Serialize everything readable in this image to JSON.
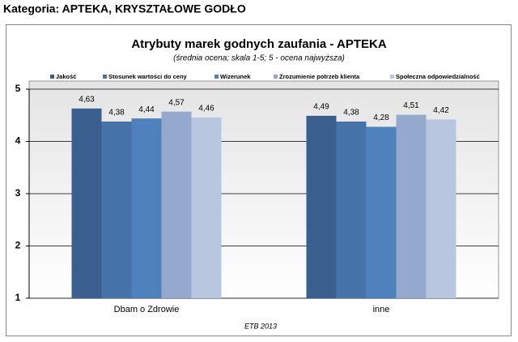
{
  "page_title": "Kategoria: APTEKA, KRYSZTAŁOWE GODŁO",
  "chart_data": {
    "type": "bar",
    "title": "Atrybuty marek godnych zaufania - APTEKA",
    "subtitle": "(średnia ocena; skala 1-5; 5 - ocena najwyższa)",
    "source": "ETB 2013",
    "categories": [
      "Dbam o Zdrowie",
      "inne"
    ],
    "series": [
      {
        "name": "Jakość",
        "color": "#3a5f8f",
        "values": [
          4.63,
          4.49
        ],
        "value_labels": [
          "4,63",
          "4,49"
        ]
      },
      {
        "name": "Stosunek wartości do ceny",
        "color": "#4673aa",
        "values": [
          4.38,
          4.38
        ],
        "value_labels": [
          "4,38",
          "4,38"
        ]
      },
      {
        "name": "Wizerunek",
        "color": "#4f81bd",
        "values": [
          4.44,
          4.28
        ],
        "value_labels": [
          "4,44",
          "4,28"
        ]
      },
      {
        "name": "Zrozumienie potrzeb klienta",
        "color": "#95a9cf",
        "values": [
          4.57,
          4.51
        ],
        "value_labels": [
          "4,57",
          "4,51"
        ]
      },
      {
        "name": "Społeczna odpowiedzialność",
        "color": "#b9c6e0",
        "values": [
          4.46,
          4.42
        ],
        "value_labels": [
          "4,46",
          "4,42"
        ]
      }
    ],
    "ylim": [
      1,
      5
    ],
    "yticks": [
      1,
      2,
      3,
      4,
      5
    ],
    "grid": true,
    "legend": "top"
  }
}
